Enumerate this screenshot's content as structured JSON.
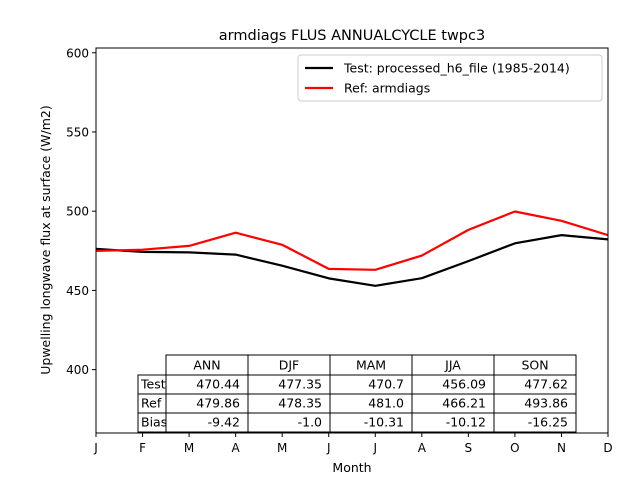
{
  "chart_data": {
    "type": "line",
    "title": "armdiags FLUS ANNUALCYCLE twpc3",
    "xlabel": "Month",
    "ylabel": "Upwelling longwave flux at surface (W/m2)",
    "ylim": [
      360,
      603
    ],
    "yticks": [
      400,
      450,
      500,
      550,
      600
    ],
    "x_tick_labels": [
      "J",
      "F",
      "M",
      "A",
      "M",
      "J",
      "J",
      "A",
      "S",
      "O",
      "N",
      "D"
    ],
    "grid": false,
    "legend_position": "top-right",
    "series": [
      {
        "name": "Test: processed_h6_file (1985-2014)",
        "color": "#000000",
        "values": [
          476.2,
          474.3,
          474.0,
          472.6,
          465.6,
          457.6,
          452.9,
          457.7,
          468.5,
          479.7,
          484.9,
          482.2
        ]
      },
      {
        "name": "Ref: armdiags",
        "color": "#ff0000",
        "values": [
          474.9,
          475.7,
          478.1,
          486.4,
          478.8,
          463.6,
          463.0,
          472.0,
          488.2,
          499.8,
          493.9,
          484.9
        ]
      }
    ],
    "table": {
      "columns": [
        "ANN",
        "DJF",
        "MAM",
        "JJA",
        "SON"
      ],
      "rows": [
        {
          "label": "Test",
          "values": [
            "470.44",
            "477.35",
            "470.7",
            "456.09",
            "477.62"
          ]
        },
        {
          "label": "Ref",
          "values": [
            "479.86",
            "478.35",
            "481.0",
            "466.21",
            "493.86"
          ]
        },
        {
          "label": "Bias",
          "values": [
            "-9.42",
            "-1.0",
            "-10.31",
            "-10.12",
            "-16.25"
          ]
        }
      ]
    }
  }
}
